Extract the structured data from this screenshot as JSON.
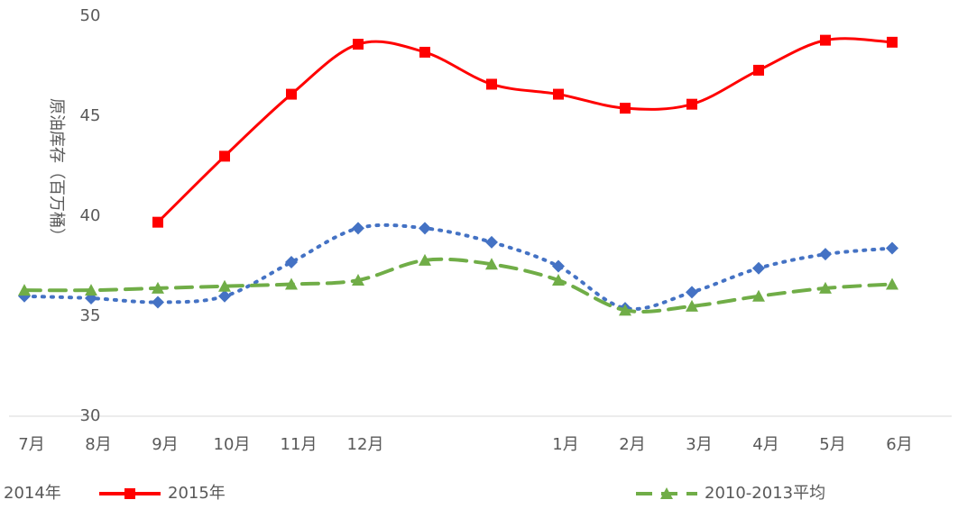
{
  "chart_data": {
    "type": "line",
    "y_axis_label": "原油库存（百万桶）",
    "categories": [
      "7月",
      "8月",
      "9月",
      "10月",
      "11月",
      "12月",
      null,
      null,
      "1月",
      "2月",
      "3月",
      "4月",
      "5月",
      "6月"
    ],
    "series": [
      {
        "name": "2014年",
        "color": "#4472c4",
        "marker": "diamond",
        "dash": "dotted",
        "values": [
          36.0,
          35.9,
          35.7,
          36.0,
          37.7,
          39.4,
          39.4,
          38.7,
          37.5,
          35.4,
          36.2,
          37.4,
          38.1,
          38.4
        ]
      },
      {
        "name": "2015年",
        "color": "#ff0000",
        "marker": "square",
        "dash": "solid",
        "values": [
          null,
          null,
          39.7,
          43.0,
          46.1,
          48.6,
          48.2,
          46.6,
          46.1,
          45.4,
          45.6,
          47.3,
          48.8,
          48.7
        ]
      },
      {
        "name": "2010-2013平均",
        "color": "#70ad47",
        "marker": "triangle",
        "dash": "dashed",
        "values": [
          36.3,
          36.3,
          36.4,
          36.5,
          36.6,
          36.8,
          37.8,
          37.6,
          36.8,
          35.3,
          35.5,
          36.0,
          36.4,
          36.6
        ]
      }
    ],
    "ylim": [
      30,
      50
    ],
    "yticks": [
      30,
      35,
      40,
      45,
      50
    ],
    "grid": false
  }
}
